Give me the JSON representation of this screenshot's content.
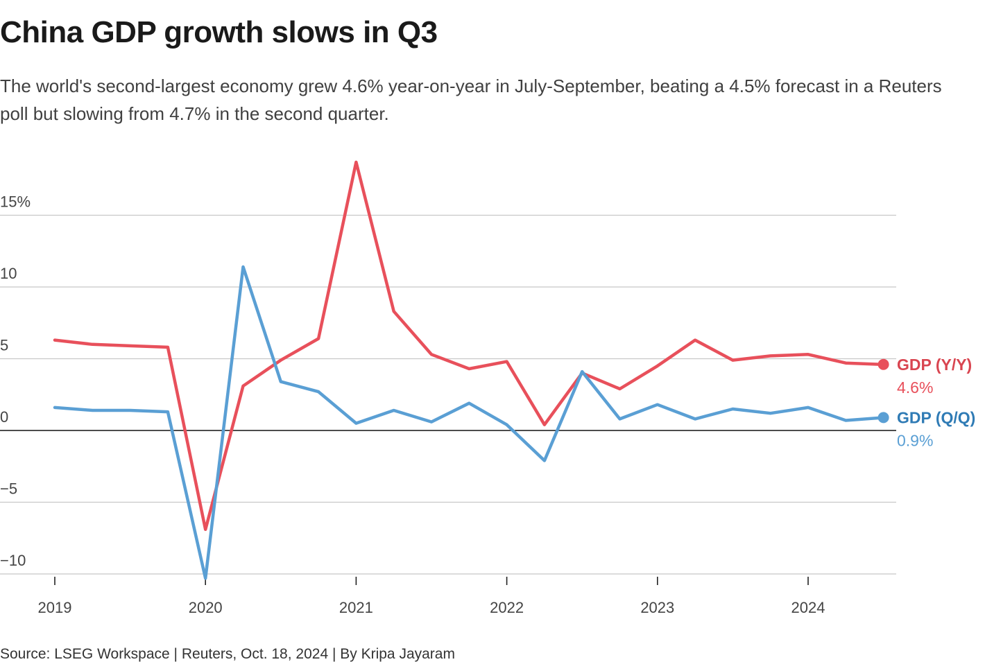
{
  "title": "China GDP growth slows in Q3",
  "subtitle": "The world's second-largest economy grew 4.6% year-on-year in July-September, beating a 4.5% forecast in a Reuters poll but slowing from 4.7% in the second quarter.",
  "source": "Source: LSEG Workspace | Reuters, Oct. 18, 2024 | By Kripa Jayaram",
  "chart_data": {
    "type": "line",
    "title": "China GDP growth slows in Q3",
    "xlabel": "",
    "ylabel": "",
    "ylim": [
      -10.5,
      19
    ],
    "y_ticks": [
      {
        "value": 15,
        "label": "15%"
      },
      {
        "value": 10,
        "label": "10"
      },
      {
        "value": 5,
        "label": "5"
      },
      {
        "value": 0,
        "label": "0"
      },
      {
        "value": -5,
        "label": "−5"
      },
      {
        "value": -10,
        "label": "−10"
      }
    ],
    "x_ticks": [
      "2019",
      "2020",
      "2021",
      "2022",
      "2023",
      "2024"
    ],
    "x": [
      "2019 Q1",
      "2019 Q2",
      "2019 Q3",
      "2019 Q4",
      "2020 Q1",
      "2020 Q2",
      "2020 Q3",
      "2020 Q4",
      "2021 Q1",
      "2021 Q2",
      "2021 Q3",
      "2021 Q4",
      "2022 Q1",
      "2022 Q2",
      "2022 Q3",
      "2022 Q4",
      "2023 Q1",
      "2023 Q2",
      "2023 Q3",
      "2023 Q4",
      "2024 Q1",
      "2024 Q2",
      "2024 Q3"
    ],
    "grid": true,
    "legend": "end-of-line labels",
    "series": [
      {
        "name": "GDP (Y/Y)",
        "end_label": "4.6%",
        "color": "#e8505b",
        "label_color": "#d94550",
        "values": [
          6.3,
          6.0,
          5.9,
          5.8,
          -6.9,
          3.1,
          4.9,
          6.4,
          18.7,
          8.3,
          5.3,
          4.3,
          4.8,
          0.4,
          4.0,
          2.9,
          4.5,
          6.3,
          4.9,
          5.2,
          5.3,
          4.7,
          4.6
        ]
      },
      {
        "name": "GDP (Q/Q)",
        "end_label": "0.9%",
        "color": "#5a9fd4",
        "label_color": "#2f7bb5",
        "values": [
          1.6,
          1.4,
          1.4,
          1.3,
          -10.3,
          11.4,
          3.4,
          2.7,
          0.5,
          1.4,
          0.6,
          1.9,
          0.4,
          -2.1,
          4.1,
          0.8,
          1.8,
          0.8,
          1.5,
          1.2,
          1.6,
          0.7,
          0.9
        ]
      }
    ]
  }
}
